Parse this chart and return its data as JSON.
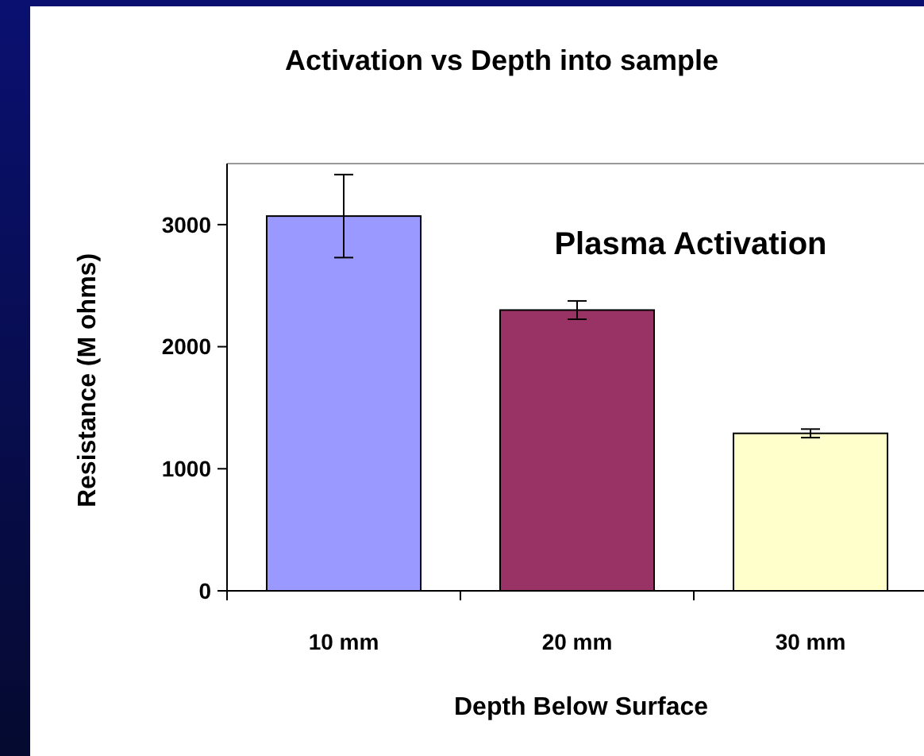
{
  "chart_data": {
    "type": "bar",
    "title": "Activation vs Depth into sample",
    "xlabel": "Depth Below Surface",
    "ylabel": "Resistance (M ohms)",
    "categories": [
      "10 mm",
      "20 mm",
      "30 mm"
    ],
    "values": [
      3070,
      2300,
      1290
    ],
    "errors": [
      340,
      75,
      35
    ],
    "colors": [
      "#9999ff",
      "#993366",
      "#ffffcc"
    ],
    "ylim": [
      0,
      3500
    ],
    "yticks": [
      0,
      1000,
      2000,
      3000
    ],
    "annotations": [
      "Plasma Activation"
    ]
  }
}
